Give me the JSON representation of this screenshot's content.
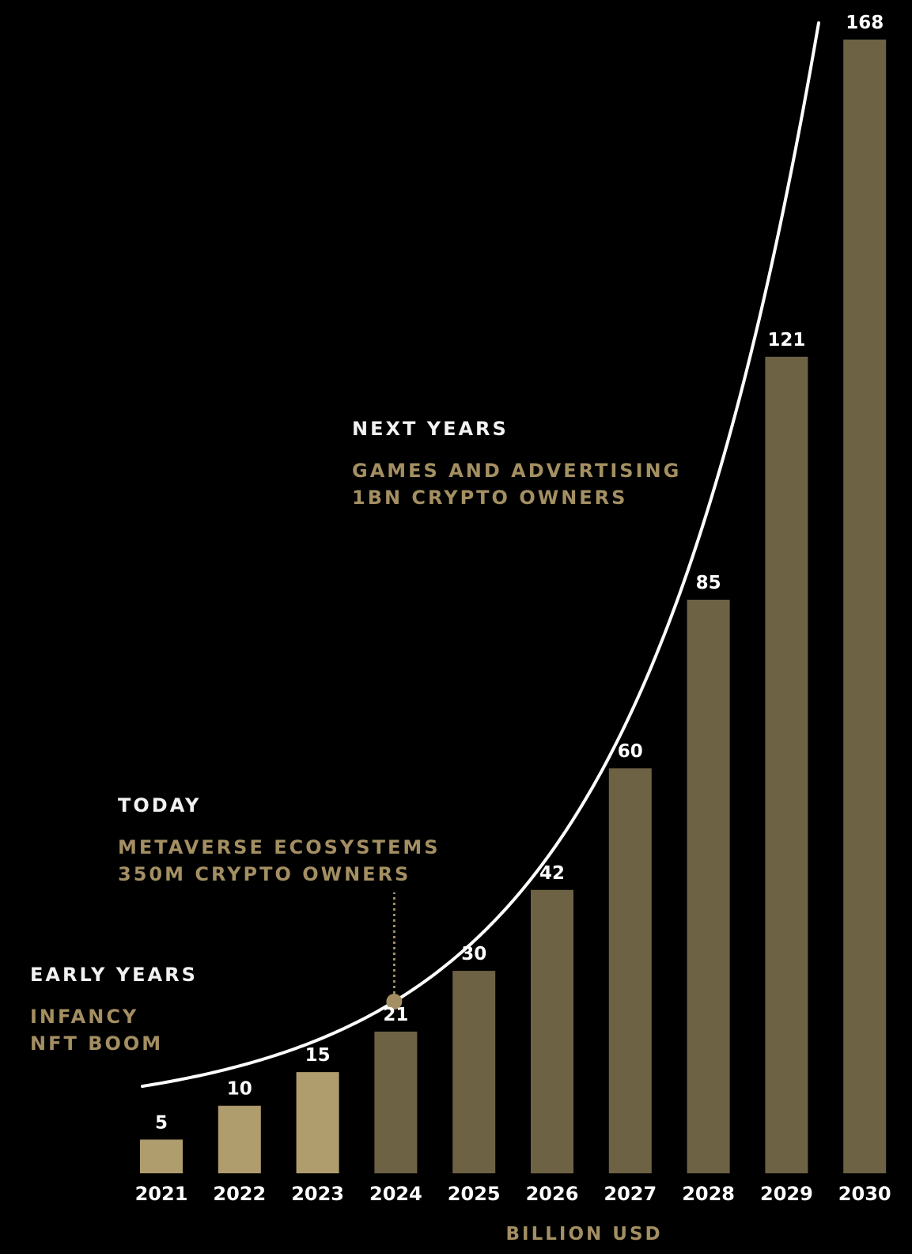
{
  "chart_data": {
    "type": "bar",
    "categories": [
      "2021",
      "2022",
      "2023",
      "2024",
      "2025",
      "2026",
      "2027",
      "2028",
      "2029",
      "2030"
    ],
    "values": [
      5,
      10,
      15,
      21,
      30,
      42,
      60,
      85,
      121,
      168
    ],
    "value_labels": [
      "5",
      "10",
      "15",
      "21",
      "30",
      "42",
      "60",
      "85",
      "121",
      "168"
    ],
    "ylabel": "",
    "xlabel": "BILLION USD",
    "ylim": [
      0,
      168
    ],
    "grid": false,
    "legend": "none",
    "colors": {
      "background": "#000000",
      "bar_early": "#b09d6e",
      "bar_later": "#6e6245",
      "curve": "#ffffff",
      "accent_text": "#a48f62",
      "marker": "#a48f62"
    },
    "trend_curve": true,
    "marker_category": "2024",
    "annotations": [
      {
        "title": "EARLY YEARS",
        "lines": [
          "INFANCY",
          "NFT BOOM"
        ]
      },
      {
        "title": "TODAY",
        "lines": [
          "METAVERSE ECOSYSTEMS",
          "350M CRYPTO OWNERS"
        ]
      },
      {
        "title": "NEXT YEARS",
        "lines": [
          "GAMES AND ADVERTISING",
          "1BN CRYPTO OWNERS"
        ]
      }
    ]
  }
}
